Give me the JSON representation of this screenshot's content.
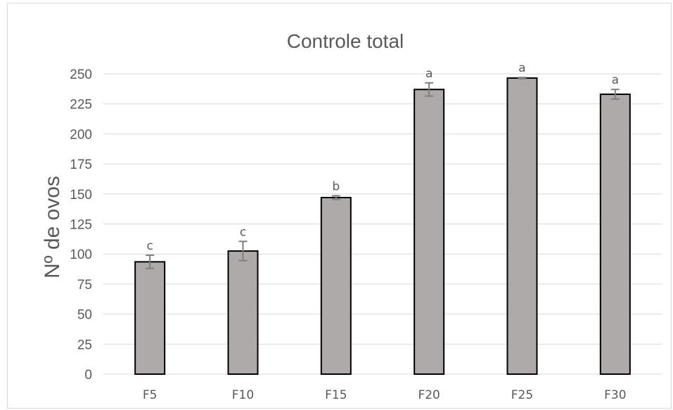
{
  "chart_data": {
    "type": "bar",
    "title": "Controle total",
    "xlabel": "",
    "ylabel": "Nº de ovos",
    "ylim": [
      0,
      250
    ],
    "yticks": [
      0,
      25,
      50,
      75,
      100,
      125,
      150,
      175,
      200,
      225,
      250
    ],
    "grid": true,
    "categories": [
      "F5",
      "F10",
      "F15",
      "F20",
      "F25",
      "F30"
    ],
    "values": [
      93.5,
      102.5,
      147,
      237,
      246.5,
      233
    ],
    "errors": [
      5.5,
      8,
      1.5,
      5.5,
      0.5,
      4
    ],
    "labels": [
      "c",
      "c",
      "b",
      "a",
      "a",
      "a"
    ],
    "colors": {
      "bar": "#aeaaaa",
      "bar_edge": "#000000",
      "error": "#7f7f7f",
      "grid": "#d9d9d9",
      "text": "#595959"
    }
  }
}
